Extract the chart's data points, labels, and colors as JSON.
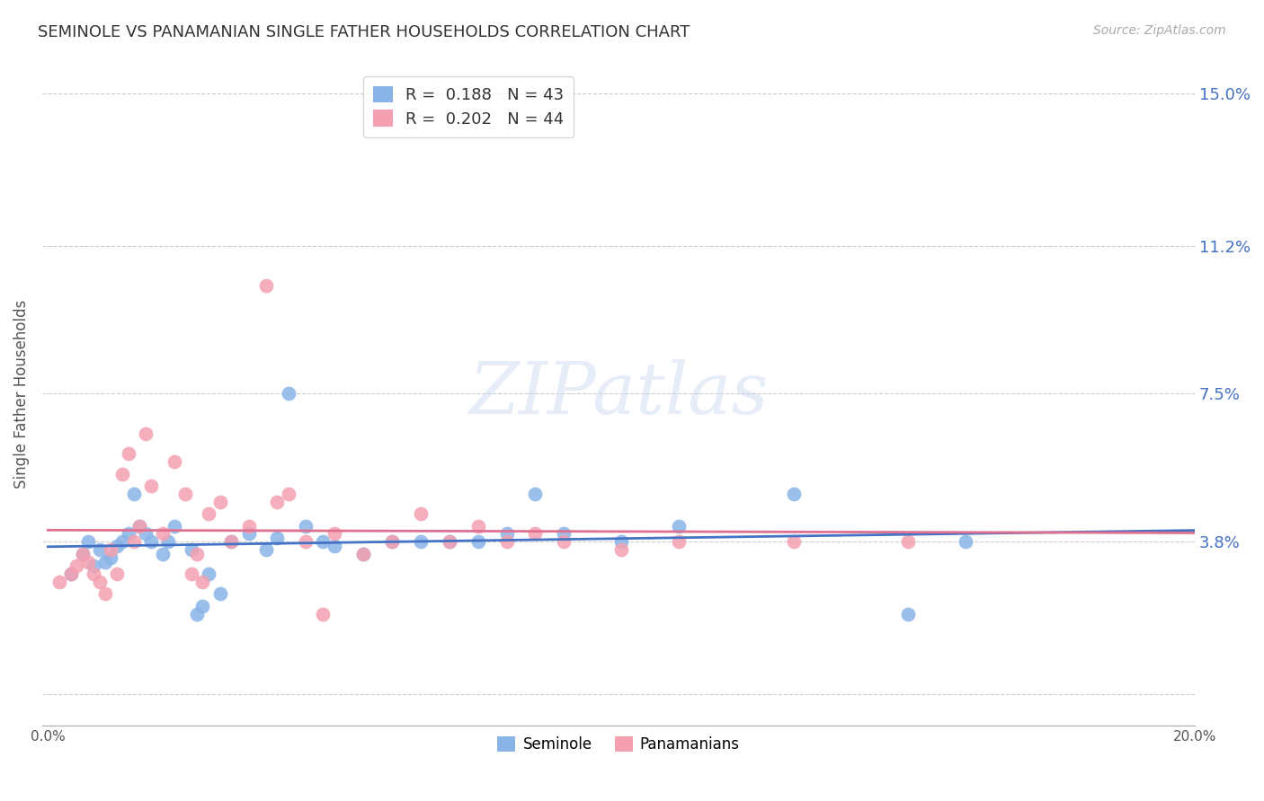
{
  "title": "SEMINOLE VS PANAMANIAN SINGLE FATHER HOUSEHOLDS CORRELATION CHART",
  "source": "Source: ZipAtlas.com",
  "ylabel": "Single Father Households",
  "xlim": [
    0.0,
    0.2
  ],
  "ylim": [
    -0.008,
    0.158
  ],
  "yticks": [
    0.0,
    0.038,
    0.075,
    0.112,
    0.15
  ],
  "ytick_labels": [
    "",
    "3.8%",
    "7.5%",
    "11.2%",
    "15.0%"
  ],
  "xticks": [
    0.0,
    0.04,
    0.08,
    0.12,
    0.16,
    0.2
  ],
  "xtick_labels": [
    "0.0%",
    "",
    "",
    "",
    "",
    "20.0%"
  ],
  "grid_color": "#cccccc",
  "background_color": "#ffffff",
  "seminole_color": "#89b4e8",
  "panamanian_color": "#f4a0b0",
  "trend_seminole_color": "#4472c4",
  "trend_panamanian_color": "#e07090",
  "legend_R_seminole": "R =  0.188",
  "legend_N_seminole": "N = 43",
  "legend_R_panamanian": "R =  0.202",
  "legend_N_panamanian": "N = 44",
  "watermark": "ZIPatlas",
  "seminole_x": [
    0.004,
    0.006,
    0.007,
    0.008,
    0.009,
    0.01,
    0.011,
    0.012,
    0.013,
    0.014,
    0.015,
    0.016,
    0.017,
    0.018,
    0.02,
    0.021,
    0.022,
    0.025,
    0.026,
    0.027,
    0.028,
    0.03,
    0.032,
    0.035,
    0.038,
    0.04,
    0.042,
    0.045,
    0.048,
    0.05,
    0.055,
    0.06,
    0.065,
    0.07,
    0.075,
    0.08,
    0.085,
    0.09,
    0.1,
    0.11,
    0.13,
    0.15,
    0.16
  ],
  "seminole_y": [
    0.03,
    0.035,
    0.038,
    0.032,
    0.036,
    0.033,
    0.034,
    0.037,
    0.038,
    0.04,
    0.05,
    0.042,
    0.04,
    0.038,
    0.035,
    0.038,
    0.042,
    0.036,
    0.02,
    0.022,
    0.03,
    0.025,
    0.038,
    0.04,
    0.036,
    0.039,
    0.075,
    0.042,
    0.038,
    0.037,
    0.035,
    0.038,
    0.038,
    0.038,
    0.038,
    0.04,
    0.05,
    0.04,
    0.038,
    0.042,
    0.05,
    0.02,
    0.038
  ],
  "panamanian_x": [
    0.002,
    0.004,
    0.005,
    0.006,
    0.007,
    0.008,
    0.009,
    0.01,
    0.011,
    0.012,
    0.013,
    0.014,
    0.015,
    0.016,
    0.017,
    0.018,
    0.02,
    0.022,
    0.024,
    0.025,
    0.026,
    0.027,
    0.028,
    0.03,
    0.032,
    0.035,
    0.038,
    0.04,
    0.042,
    0.045,
    0.048,
    0.05,
    0.055,
    0.06,
    0.065,
    0.07,
    0.075,
    0.08,
    0.085,
    0.09,
    0.1,
    0.11,
    0.13,
    0.15
  ],
  "panamanian_y": [
    0.028,
    0.03,
    0.032,
    0.035,
    0.033,
    0.03,
    0.028,
    0.025,
    0.036,
    0.03,
    0.055,
    0.06,
    0.038,
    0.042,
    0.065,
    0.052,
    0.04,
    0.058,
    0.05,
    0.03,
    0.035,
    0.028,
    0.045,
    0.048,
    0.038,
    0.042,
    0.102,
    0.048,
    0.05,
    0.038,
    0.02,
    0.04,
    0.035,
    0.038,
    0.045,
    0.038,
    0.042,
    0.038,
    0.04,
    0.038,
    0.036,
    0.038,
    0.038,
    0.038
  ]
}
